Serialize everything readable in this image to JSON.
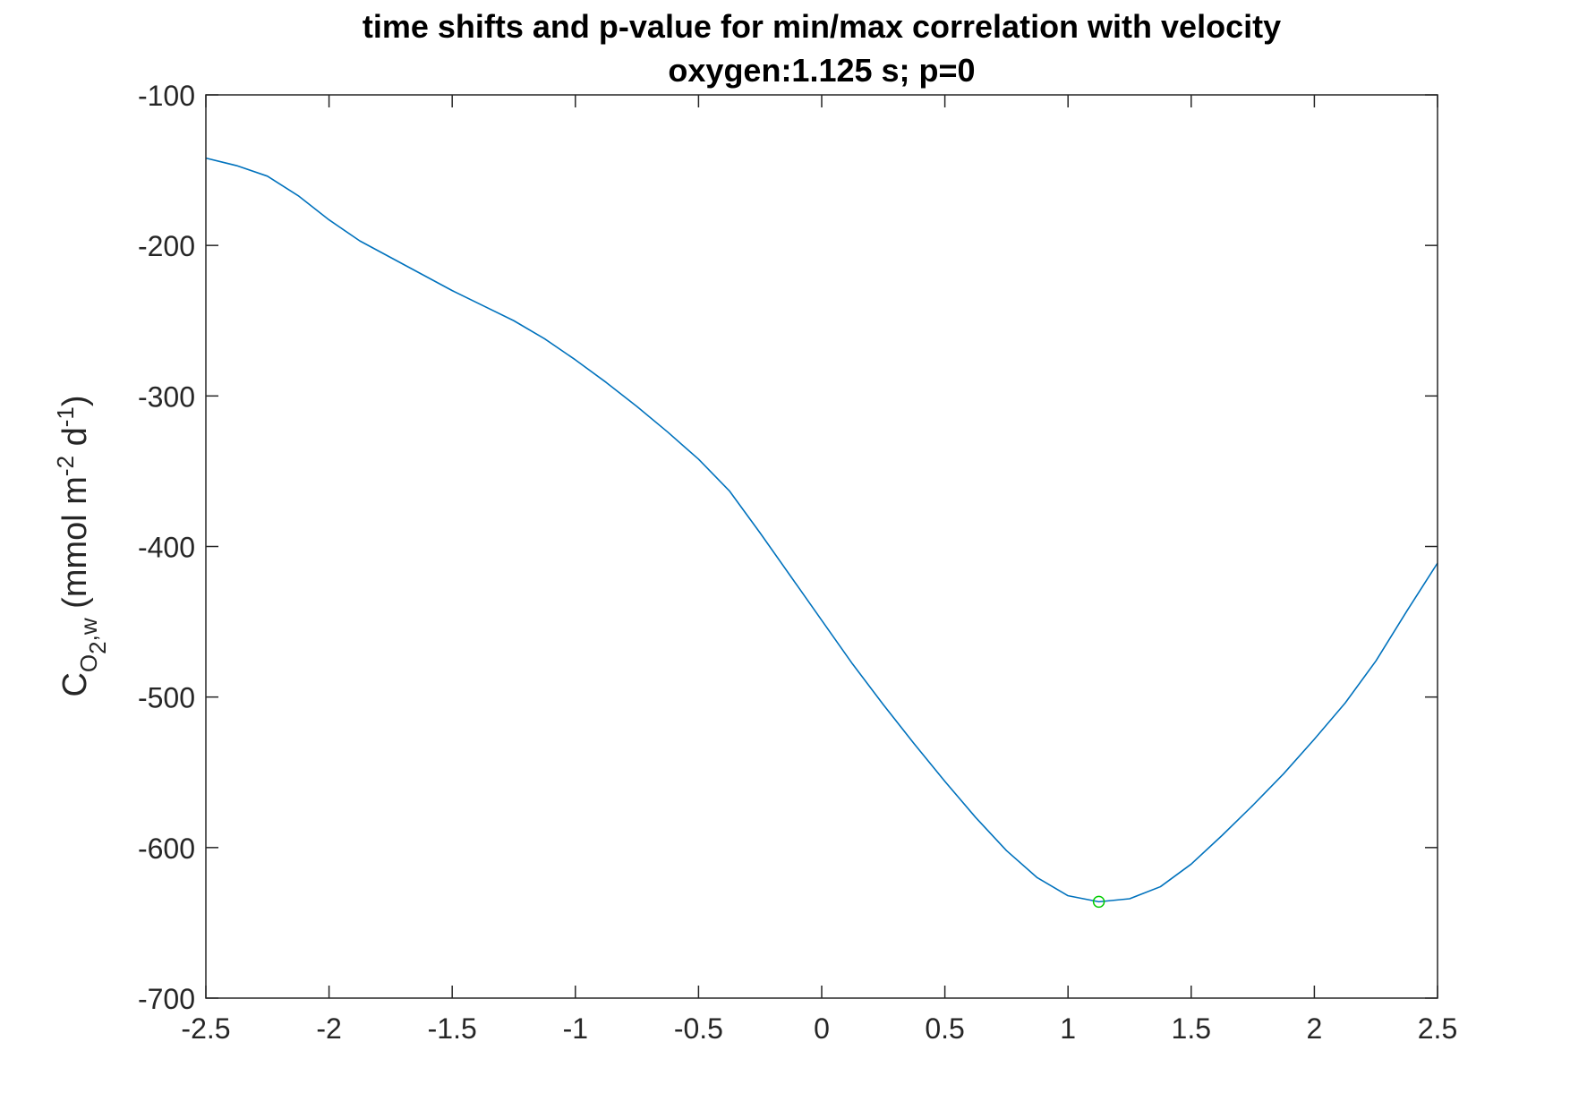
{
  "chart_data": {
    "type": "line",
    "title": "time shifts and p-value for min/max correlation with velocity",
    "subtitle": "oxygen:1.125 s; p=0",
    "xlabel": "",
    "ylabel": {
      "main": "C",
      "sub1": "O",
      "sub2": "2",
      "sub3": ",w",
      "units_open": " (mmol m",
      "units_exp1": "-2",
      "units_mid": " d",
      "units_exp2": "-1",
      "units_close": ")"
    },
    "xlim": [
      -2.5,
      2.5
    ],
    "ylim": [
      -700,
      -100
    ],
    "xticks": [
      -2.5,
      -2,
      -1.5,
      -1,
      -0.5,
      0,
      0.5,
      1,
      1.5,
      2,
      2.5
    ],
    "xtick_labels": [
      "-2.5",
      "-2",
      "-1.5",
      "-1",
      "-0.5",
      "0",
      "0.5",
      "1",
      "1.5",
      "2",
      "2.5"
    ],
    "yticks": [
      -100,
      -200,
      -300,
      -400,
      -500,
      -600,
      -700
    ],
    "ytick_labels": [
      "-100",
      "-200",
      "-300",
      "-400",
      "-500",
      "-600",
      "-700"
    ],
    "grid": false,
    "series": [
      {
        "color": "#0072BD",
        "x": [
          -2.5,
          -2.375,
          -2.25,
          -2.125,
          -2.0,
          -1.875,
          -1.75,
          -1.625,
          -1.5,
          -1.375,
          -1.25,
          -1.125,
          -1.0,
          -0.875,
          -0.75,
          -0.625,
          -0.5,
          -0.375,
          -0.25,
          -0.125,
          0.0,
          0.125,
          0.25,
          0.375,
          0.5,
          0.625,
          0.75,
          0.875,
          1.0,
          1.125,
          1.25,
          1.375,
          1.5,
          1.625,
          1.75,
          1.875,
          2.0,
          2.125,
          2.25,
          2.375,
          2.5
        ],
        "values": [
          -142,
          -147,
          -154,
          -167,
          -183,
          -197,
          -208,
          -219,
          -230,
          -240,
          -250,
          -262,
          -276,
          -291,
          -307,
          -324,
          -342,
          -363,
          -391,
          -420,
          -449,
          -478,
          -505,
          -531,
          -556,
          -580,
          -602,
          -620,
          -632,
          -636,
          -634,
          -626,
          -611,
          -592,
          -572,
          -551,
          -528,
          -504,
          -476,
          -443,
          -411
        ]
      }
    ],
    "markers": [
      {
        "x": 1.125,
        "y": -636,
        "color": "#00CC00",
        "shape": "circle"
      }
    ]
  }
}
